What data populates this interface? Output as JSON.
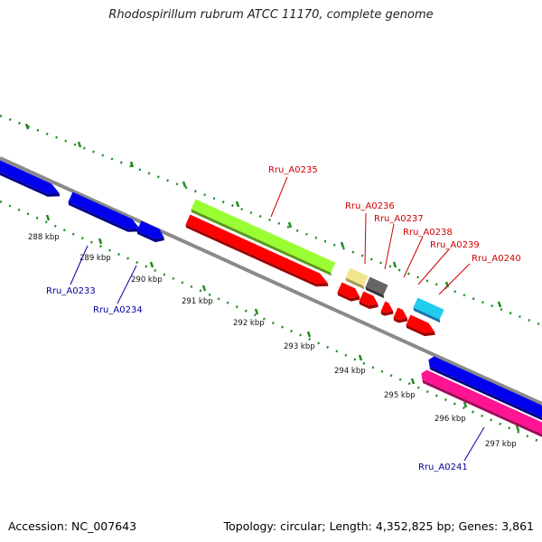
{
  "title": "Rhodospirillum rubrum ATCC 11170, complete genome",
  "footer": {
    "accession": "Accession: NC_007643",
    "stats": "Topology: circular; Length: 4,352,825 bp; Genes: 3,861"
  },
  "scale": {
    "ticks": [
      "288 kbp",
      "289 kbp",
      "290 kbp",
      "291 kbp",
      "292 kbp",
      "293 kbp",
      "294 kbp",
      "295 kbp",
      "296 kbp",
      "297 kbp"
    ]
  },
  "genes": {
    "red_labels": [
      "Rru_A0235",
      "Rru_A0236",
      "Rru_A0237",
      "Rru_A0238",
      "Rru_A0239",
      "Rru_A0240"
    ],
    "blue_labels": [
      "Rru_A0233",
      "Rru_A0234",
      "Rru_A0241"
    ]
  },
  "colors": {
    "backbone": "#888888",
    "forward_gene": "#0000ee",
    "cds": "#ff0000",
    "misc_feature_green": "#99ff33",
    "feature_khaki": "#f0e68c",
    "feature_gray": "#666666",
    "feature_cyan": "#22ccee",
    "feature_magenta": "#ff1493",
    "tick": "#228b22"
  }
}
